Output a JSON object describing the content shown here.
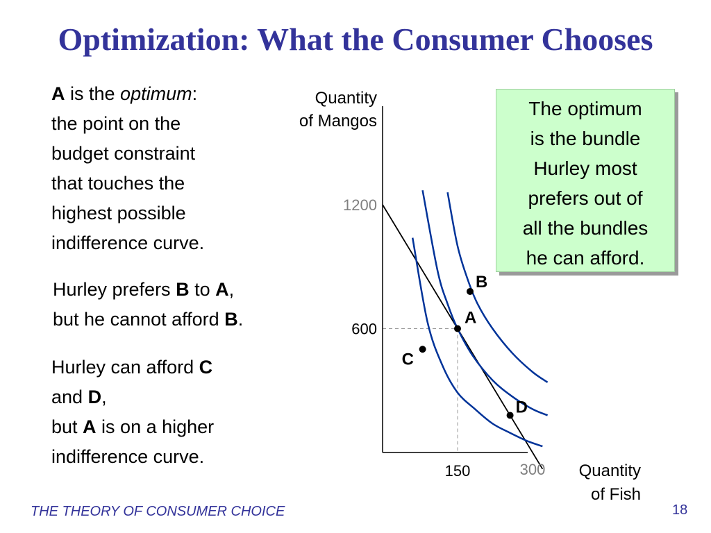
{
  "slide": {
    "title": "Optimization:  What the Consumer Chooses",
    "footer": "THE THEORY OF CONSUMER CHOICE",
    "page_number": "18"
  },
  "text_blocks": {
    "block1": {
      "a": "A",
      "is_the": " is the ",
      "optimum": "optimum",
      "colon": ":",
      "line2": "the point on the",
      "line3": "budget constraint",
      "line4": "that touches the",
      "line5": "highest possible",
      "line6": "indifference curve."
    },
    "block2": {
      "t1": "Hurley prefers ",
      "b": "B",
      "t2": " to ",
      "a": "A",
      "t3": ",",
      "t4": "but he cannot afford ",
      "b2": "B",
      "t5": "."
    },
    "block3": {
      "t1": "Hurley can afford ",
      "c": "C",
      "t2": "and ",
      "d": "D",
      "t3": ",",
      "t4": "but ",
      "a": "A",
      "t5": " is on a higher",
      "t6": "indifference curve."
    }
  },
  "callout": {
    "lines": [
      "The optimum",
      "is the bundle",
      "Hurley most",
      "prefers out of",
      "all the bundles",
      "he can afford."
    ]
  },
  "colors": {
    "title": "#33339a",
    "indifference_curve": "#003399",
    "callout_bg": "#ccffcc",
    "muted_tick": "#808080"
  },
  "chart_data": {
    "type": "line",
    "xlabel": [
      "Quantity",
      "of Fish"
    ],
    "ylabel": [
      "Quantity",
      "of Mangos"
    ],
    "x_ticks": [
      {
        "value": 150,
        "label": "150"
      },
      {
        "value": 300,
        "label": "300"
      }
    ],
    "y_ticks": [
      {
        "value": 600,
        "label": "600"
      },
      {
        "value": 1200,
        "label": "1200"
      }
    ],
    "xlim": [
      0,
      450
    ],
    "ylim": [
      0,
      1750
    ],
    "budget_constraint": {
      "x": [
        0,
        300
      ],
      "y": [
        1200,
        0
      ]
    },
    "indifference_curves": [
      {
        "x": [
          60,
          90,
          120,
          150,
          185,
          220,
          255,
          290,
          320
        ],
        "y": [
          1040,
          630,
          420,
          290,
          210,
          140,
          95,
          55,
          30
        ]
      },
      {
        "x": [
          80,
          110,
          130,
          150,
          180,
          220,
          260,
          300,
          330
        ],
        "y": [
          1270,
          880,
          720,
          600,
          470,
          350,
          270,
          210,
          180
        ]
      },
      {
        "x": [
          130,
          150,
          170,
          190,
          220,
          260,
          300,
          330
        ],
        "y": [
          1260,
          1000,
          840,
          720,
          600,
          480,
          390,
          340
        ]
      }
    ],
    "points": [
      {
        "label": "A",
        "x": 150,
        "y": 600
      },
      {
        "label": "B",
        "x": 175,
        "y": 780
      },
      {
        "label": "C",
        "x": 80,
        "y": 500
      },
      {
        "label": "D",
        "x": 255,
        "y": 180
      }
    ]
  }
}
